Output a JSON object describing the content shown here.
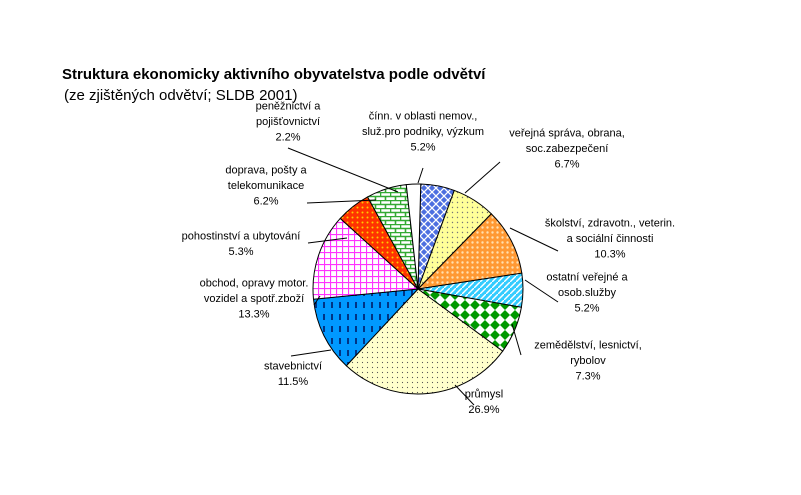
{
  "chart_data": {
    "type": "pie",
    "title": "Struktura ekonomicky aktivního obyvatelstva podle odvětví",
    "subtitle": "(ze zjištěných odvětví; SLDB 2001)",
    "slices": [
      {
        "label_lines": [
          "čínn. v oblasti nemov.,",
          "služ.pro podniky, výzkum"
        ],
        "value_label": "5.2%",
        "value": 5.2,
        "color": "#3a5fd6",
        "pattern": "crosshatch-blue"
      },
      {
        "label_lines": [
          "veřejná správa, obrana,",
          "soc.zabezpečení"
        ],
        "value_label": "6.7%",
        "value": 6.7,
        "color": "#ffff99",
        "pattern": "dots-yellow"
      },
      {
        "label_lines": [
          "školství, zdravotn., veterin.",
          "a sociální činnosti"
        ],
        "value_label": "10.3%",
        "value": 10.3,
        "color": "#ff9933",
        "pattern": "dots-orange"
      },
      {
        "label_lines": [
          "ostatní veřejné a",
          "osob.služby"
        ],
        "value_label": "5.2%",
        "value": 5.2,
        "color": "#33ccff",
        "pattern": "diag-cyan"
      },
      {
        "label_lines": [
          "zemědělství, lesnictví,",
          "rybolov"
        ],
        "value_label": "7.3%",
        "value": 7.3,
        "color": "#009900",
        "pattern": "checker-green"
      },
      {
        "label_lines": [
          "průmysl"
        ],
        "value_label": "26.9%",
        "value": 26.9,
        "color": "#ffffcc",
        "pattern": "dots-cream"
      },
      {
        "label_lines": [
          "stavebnictví"
        ],
        "value_label": "11.5%",
        "value": 11.5,
        "color": "#0099ff",
        "pattern": "dashes-blue"
      },
      {
        "label_lines": [
          "obchod, opravy motor.",
          "vozidel a spotř.zboží"
        ],
        "value_label": "13.3%",
        "value": 13.3,
        "color": "#ff33ff",
        "pattern": "grid-magenta"
      },
      {
        "label_lines": [
          "pohostinství a ubytování"
        ],
        "value_label": "5.3%",
        "value": 5.3,
        "color": "#ff3300",
        "pattern": "dots-red"
      },
      {
        "label_lines": [
          "doprava, pošty a",
          "telekomunikace"
        ],
        "value_label": "6.2%",
        "value": 6.2,
        "color": "#66cc66",
        "pattern": "brick-green"
      },
      {
        "label_lines": [
          "peněžnictví a",
          "pojišťovnictví"
        ],
        "value_label": "2.2%",
        "value": 2.2,
        "color": "#ffffff",
        "pattern": "plain-white"
      }
    ]
  }
}
